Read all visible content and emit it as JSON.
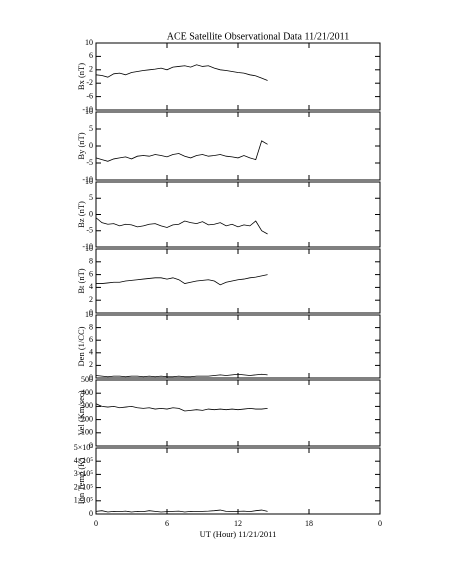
{
  "chart_data": [
    {
      "type": "line",
      "title": "ACE Satellite Observational Data   11/21/2011",
      "ylabel": "Bx (nT)",
      "x": [
        0,
        0.5,
        1,
        1.5,
        2,
        2.5,
        3,
        3.5,
        4,
        4.5,
        5,
        5.5,
        6,
        6.5,
        7,
        7.5,
        8,
        8.5,
        9,
        9.5,
        10,
        10.5,
        11,
        11.5,
        12,
        12.5,
        13,
        13.5,
        14,
        14.5
      ],
      "values": [
        0.5,
        0.3,
        -0.2,
        0.8,
        1.0,
        0.5,
        1.2,
        1.5,
        1.8,
        2.0,
        2.2,
        2.5,
        2.0,
        2.8,
        3.0,
        3.2,
        2.8,
        3.5,
        3.0,
        3.2,
        2.5,
        2.0,
        1.8,
        1.5,
        1.2,
        1.0,
        0.5,
        0.2,
        -0.5,
        -1.2
      ],
      "xlim": [
        0,
        24
      ],
      "xticks": [
        0,
        6,
        12,
        18,
        {
          "value": 24,
          "label": "0"
        }
      ],
      "ylim": [
        -10,
        10
      ],
      "yticks": [
        10,
        6,
        2,
        -2,
        -6,
        -10
      ],
      "color": "#000000"
    },
    {
      "type": "line",
      "ylabel": "By (nT)",
      "x": [
        0,
        0.5,
        1,
        1.5,
        2,
        2.5,
        3,
        3.5,
        4,
        4.5,
        5,
        5.5,
        6,
        6.5,
        7,
        7.5,
        8,
        8.5,
        9,
        9.5,
        10,
        10.5,
        11,
        11.5,
        12,
        12.5,
        13,
        13.5,
        14,
        14.5
      ],
      "values": [
        -3.5,
        -4,
        -4.5,
        -3.8,
        -3.5,
        -3.2,
        -3.8,
        -3,
        -2.8,
        -3,
        -2.5,
        -2.8,
        -3.2,
        -2.5,
        -2.2,
        -3,
        -3.5,
        -2.8,
        -2.5,
        -3,
        -2.8,
        -2.5,
        -3,
        -3.2,
        -3.5,
        -2.8,
        -3.5,
        -4,
        1.5,
        0.5
      ],
      "xlim": [
        0,
        24
      ],
      "xticks": [
        0,
        6,
        12,
        18,
        {
          "value": 24,
          "label": "0"
        }
      ],
      "ylim": [
        -10,
        10
      ],
      "yticks": [
        10,
        5,
        0,
        -5,
        -10
      ],
      "color": "#000000"
    },
    {
      "type": "line",
      "ylabel": "Bz (nT)",
      "x": [
        0,
        0.5,
        1,
        1.5,
        2,
        2.5,
        3,
        3.5,
        4,
        4.5,
        5,
        5.5,
        6,
        6.5,
        7,
        7.5,
        8,
        8.5,
        9,
        9.5,
        10,
        10.5,
        11,
        11.5,
        12,
        12.5,
        13,
        13.5,
        14,
        14.5
      ],
      "values": [
        -1,
        -2.5,
        -3,
        -2.8,
        -3.5,
        -3,
        -3.2,
        -3.8,
        -3.5,
        -3,
        -2.8,
        -3.5,
        -4,
        -3.2,
        -3,
        -2,
        -2.5,
        -2.8,
        -2.2,
        -3.2,
        -3,
        -2.5,
        -3.5,
        -3,
        -3.8,
        -3.2,
        -3.5,
        -2,
        -5,
        -6
      ],
      "xlim": [
        0,
        24
      ],
      "xticks": [
        0,
        6,
        12,
        18,
        {
          "value": 24,
          "label": "0"
        }
      ],
      "ylim": [
        -10,
        10
      ],
      "yticks": [
        10,
        5,
        0,
        -5,
        -10
      ],
      "color": "#000000"
    },
    {
      "type": "line",
      "ylabel": "Bt (nT)",
      "x": [
        0,
        0.5,
        1,
        1.5,
        2,
        2.5,
        3,
        3.5,
        4,
        4.5,
        5,
        5.5,
        6,
        6.5,
        7,
        7.5,
        8,
        8.5,
        9,
        9.5,
        10,
        10.5,
        11,
        11.5,
        12,
        12.5,
        13,
        13.5,
        14,
        14.5
      ],
      "values": [
        4.6,
        4.6,
        4.7,
        4.8,
        4.8,
        5.0,
        5.1,
        5.2,
        5.3,
        5.4,
        5.5,
        5.5,
        5.3,
        5.5,
        5.2,
        4.6,
        4.8,
        5.0,
        5.1,
        5.2,
        5.0,
        4.4,
        4.8,
        5.0,
        5.2,
        5.3,
        5.5,
        5.6,
        5.8,
        6.0
      ],
      "xlim": [
        0,
        24
      ],
      "xticks": [
        0,
        6,
        12,
        18,
        {
          "value": 24,
          "label": "0"
        }
      ],
      "ylim": [
        0,
        10
      ],
      "yticks": [
        10,
        8,
        6,
        4,
        2,
        0
      ],
      "color": "#000000"
    },
    {
      "type": "line",
      "ylabel": "Den (1/CC)",
      "x": [
        0,
        0.5,
        1,
        1.5,
        2,
        2.5,
        3,
        3.5,
        4,
        4.5,
        5,
        5.5,
        6,
        6.5,
        7,
        7.5,
        8,
        8.5,
        9,
        9.5,
        10,
        10.5,
        11,
        11.5,
        12,
        12.5,
        13,
        13.5,
        14,
        14.5
      ],
      "values": [
        0.4,
        0.3,
        0.2,
        0.3,
        0.3,
        0.2,
        0.3,
        0.3,
        0.2,
        0.3,
        0.2,
        0.3,
        0.2,
        0.2,
        0.3,
        0.2,
        0.2,
        0.3,
        0.3,
        0.3,
        0.4,
        0.5,
        0.4,
        0.5,
        0.6,
        0.5,
        0.4,
        0.5,
        0.6,
        0.5
      ],
      "xlim": [
        0,
        24
      ],
      "xticks": [
        0,
        6,
        12,
        18,
        {
          "value": 24,
          "label": "0"
        }
      ],
      "ylim": [
        0,
        10
      ],
      "yticks": [
        10,
        8,
        6,
        4,
        2,
        0
      ],
      "color": "#000000"
    },
    {
      "type": "line",
      "ylabel": "Vel (Km/sec)",
      "x": [
        0,
        0.5,
        1,
        1.5,
        2,
        2.5,
        3,
        3.5,
        4,
        4.5,
        5,
        5.5,
        6,
        6.5,
        7,
        7.5,
        8,
        8.5,
        9,
        9.5,
        10,
        10.5,
        11,
        11.5,
        12,
        12.5,
        13,
        13.5,
        14,
        14.5
      ],
      "values": [
        320,
        300,
        295,
        300,
        290,
        295,
        300,
        290,
        285,
        290,
        280,
        285,
        280,
        290,
        285,
        265,
        270,
        275,
        270,
        280,
        275,
        280,
        275,
        280,
        275,
        280,
        285,
        280,
        280,
        285
      ],
      "xlim": [
        0,
        24
      ],
      "xticks": [
        0,
        6,
        12,
        18,
        {
          "value": 24,
          "label": "0"
        }
      ],
      "ylim": [
        0,
        500
      ],
      "yticks": [
        500,
        400,
        300,
        200,
        100,
        0
      ],
      "color": "#000000"
    },
    {
      "type": "line",
      "ylabel": "Ion Temp (K)",
      "xlabel": "UT (Hour)   11/21/2011",
      "x": [
        0,
        0.5,
        1,
        1.5,
        2,
        2.5,
        3,
        3.5,
        4,
        4.5,
        5,
        5.5,
        6,
        6.5,
        7,
        7.5,
        8,
        8.5,
        9,
        9.5,
        10,
        10.5,
        11,
        11.5,
        12,
        12.5,
        13,
        13.5,
        14,
        14.5
      ],
      "values": [
        20000,
        25000,
        15000,
        20000,
        18000,
        22000,
        15000,
        20000,
        18000,
        25000,
        20000,
        15000,
        18000,
        20000,
        22000,
        15000,
        20000,
        18000,
        20000,
        22000,
        25000,
        30000,
        20000,
        18000,
        20000,
        22000,
        18000,
        25000,
        30000,
        20000
      ],
      "xlim": [
        0,
        24
      ],
      "xticks": [
        0,
        6,
        12,
        18,
        {
          "value": 24,
          "label": "0"
        }
      ],
      "ylim": [
        0,
        500000
      ],
      "yticks": [
        {
          "value": 500000,
          "label": "5×10⁵"
        },
        {
          "value": 400000,
          "label": "4×10⁵"
        },
        {
          "value": 300000,
          "label": "3×10⁵"
        },
        {
          "value": 200000,
          "label": "2×10⁵"
        },
        {
          "value": 100000,
          "label": "1×10⁵"
        },
        0
      ],
      "color": "#000000"
    }
  ]
}
